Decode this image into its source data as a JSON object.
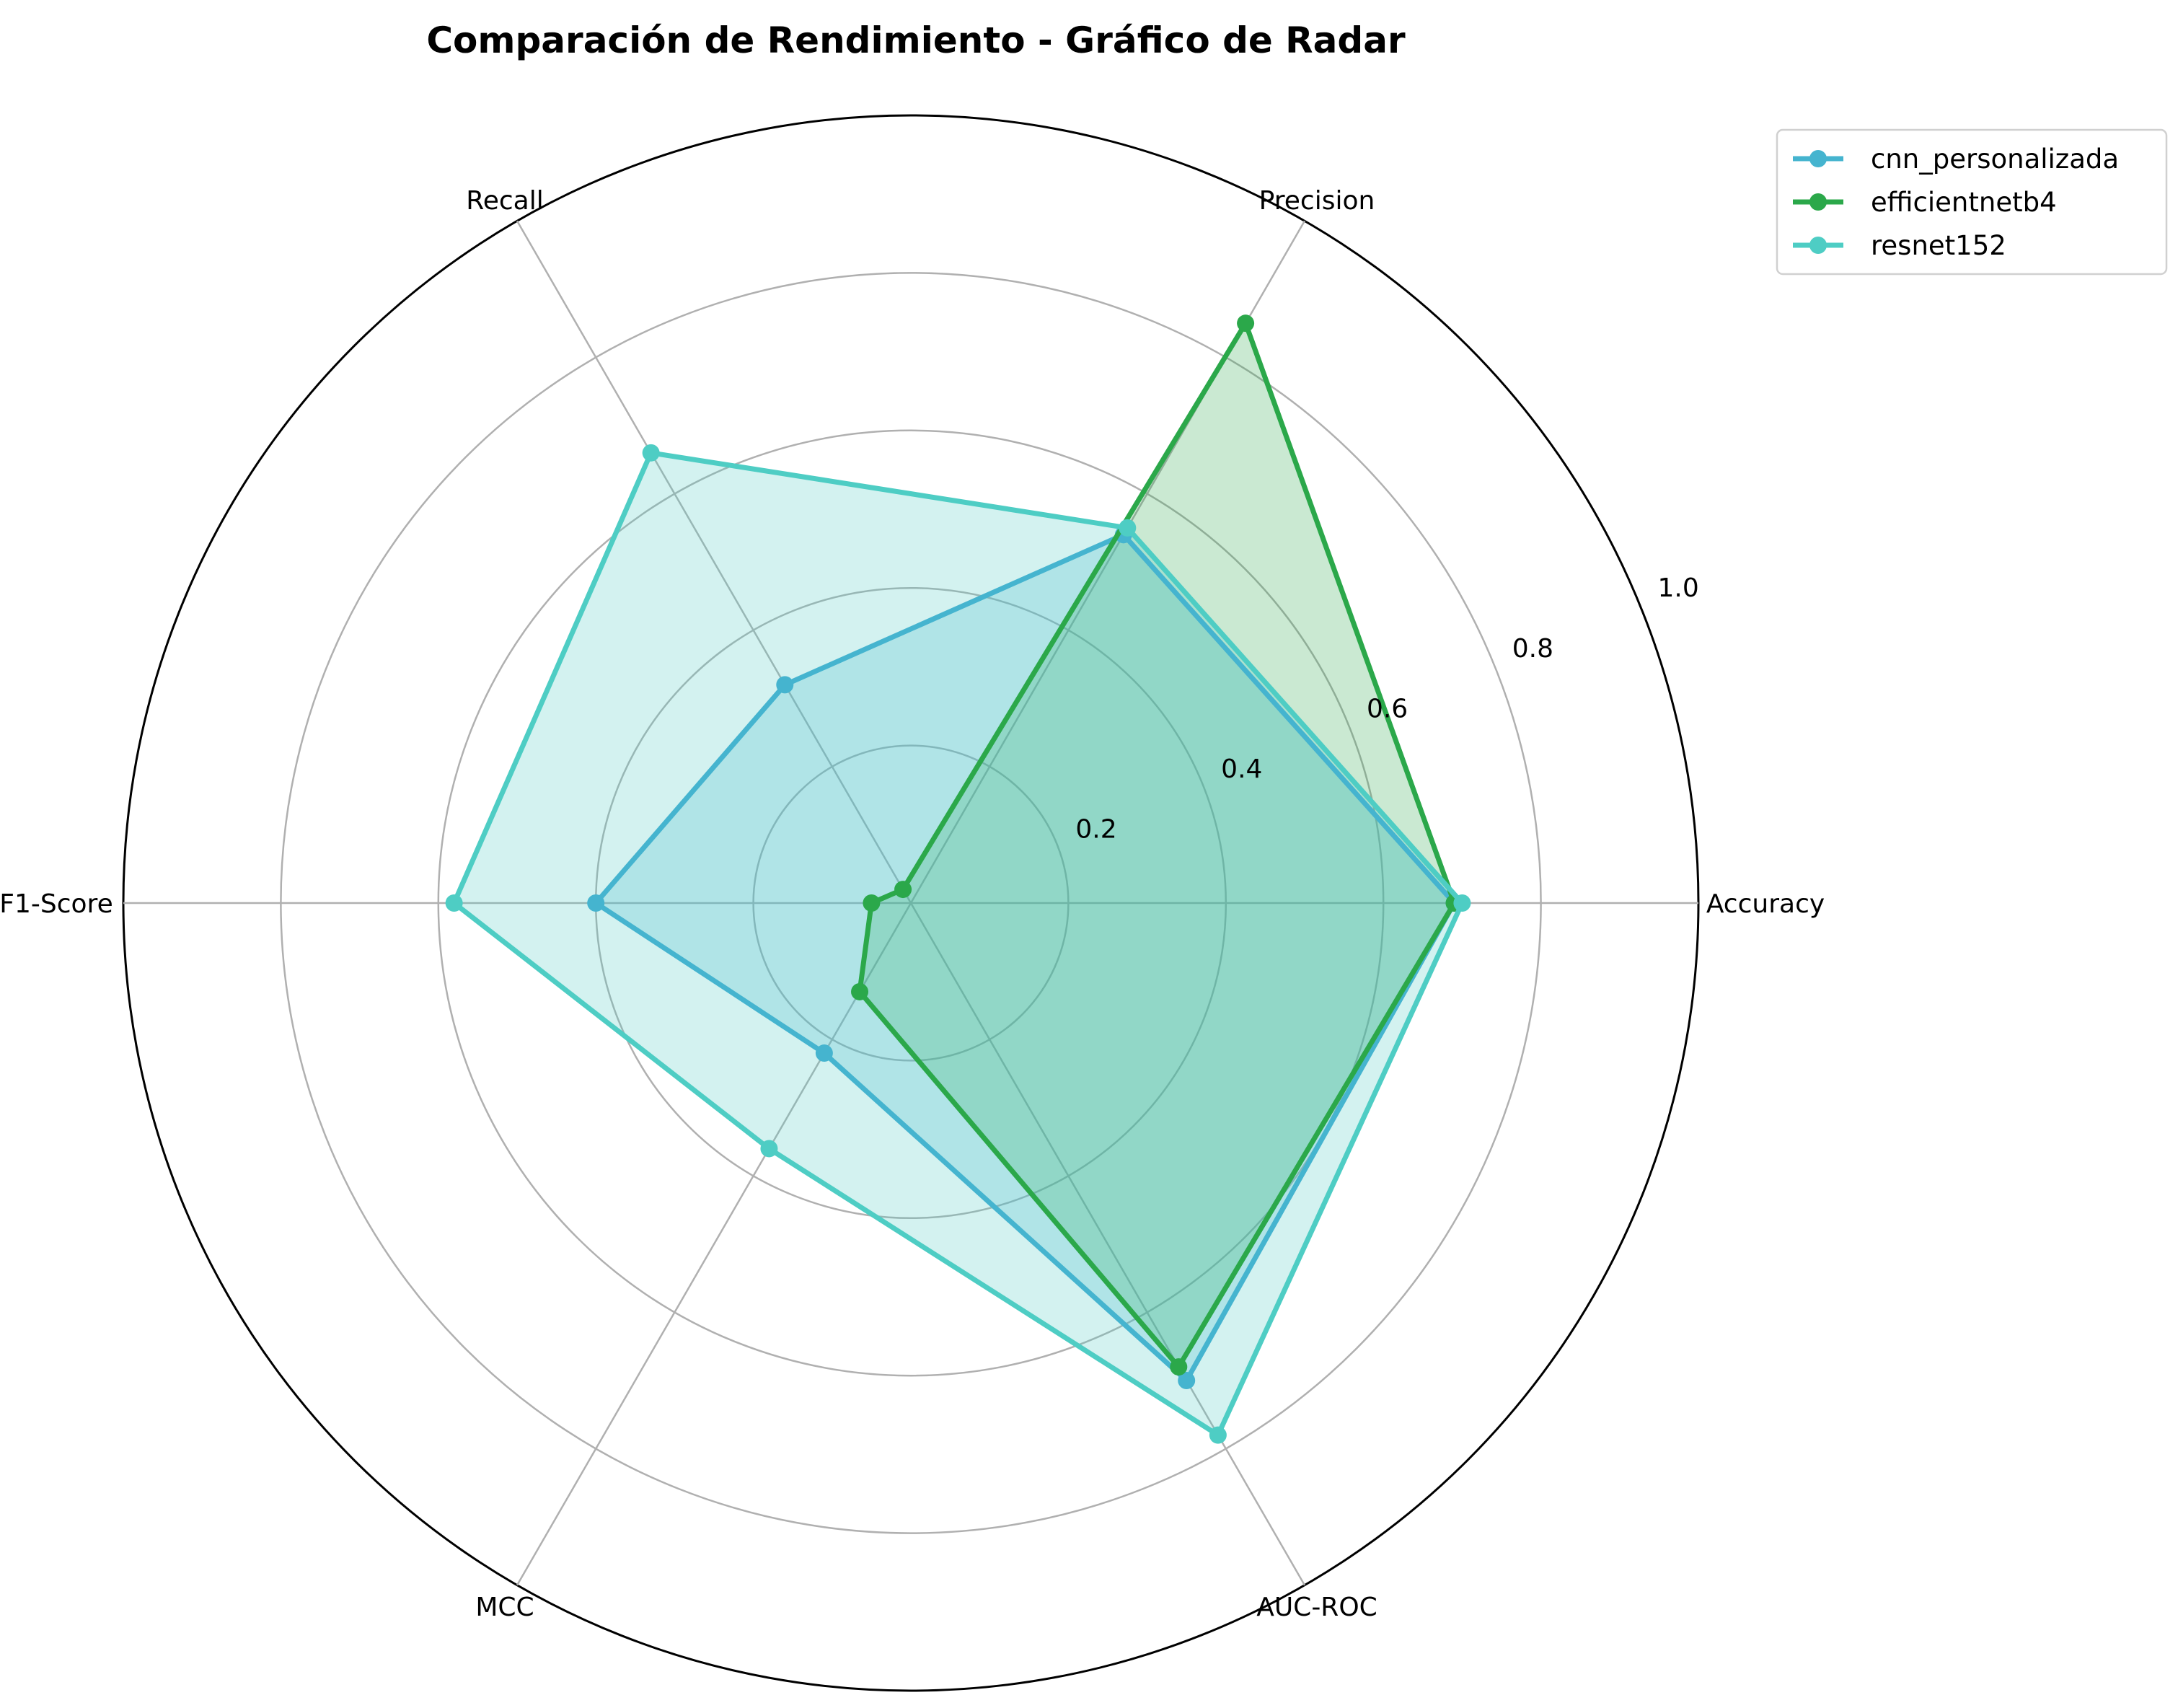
{
  "chart_data": {
    "type": "radar",
    "title": "Comparación de Rendimiento - Gráfico de Radar",
    "categories": [
      "Accuracy",
      "Precision",
      "Recall",
      "F1-Score",
      "MCC",
      "AUC-ROC"
    ],
    "rlim": [
      0,
      1.0
    ],
    "rticks": [
      "0.2",
      "0.4",
      "0.6",
      "0.8",
      "1.0"
    ],
    "rtick_values": [
      0.2,
      0.4,
      0.6,
      0.8,
      1.0
    ],
    "grid": true,
    "legend_position": "top-right, outside plot",
    "series": [
      {
        "name": "cnn_personalizada",
        "color": "#45b4cf",
        "values": [
          0.69,
          0.54,
          0.32,
          0.4,
          0.22,
          0.7
        ]
      },
      {
        "name": "efficientnetb4",
        "color": "#2ba84a",
        "values": [
          0.69,
          0.85,
          0.02,
          0.05,
          0.13,
          0.68
        ]
      },
      {
        "name": "resnet152",
        "color": "#4ecdc4",
        "values": [
          0.7,
          0.55,
          0.66,
          0.58,
          0.36,
          0.78
        ]
      }
    ]
  }
}
